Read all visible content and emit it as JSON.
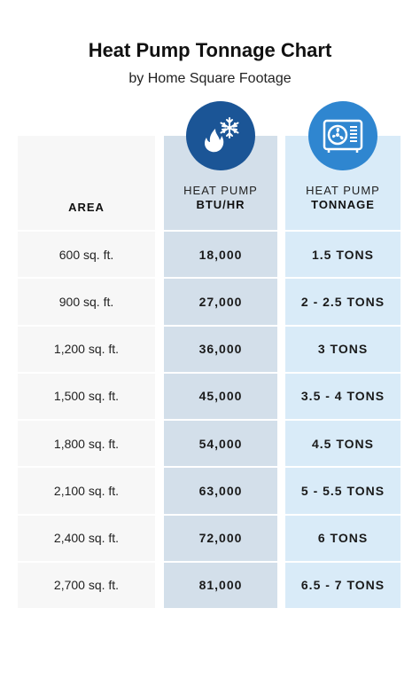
{
  "title": "Heat Pump Tonnage Chart",
  "subtitle": "by Home Square Footage",
  "colors": {
    "btu_column": "#d3dfea",
    "tonnage_column": "#d9ebf8",
    "btu_icon": "#1b5596",
    "tonnage_icon": "#2f86d0"
  },
  "icons": {
    "btu": "flame-snowflake-icon",
    "tonnage": "heat-pump-unit-icon"
  },
  "chart_data": {
    "type": "table",
    "columns": [
      {
        "line1": "",
        "line2": "AREA"
      },
      {
        "line1": "HEAT PUMP",
        "line2": "BTU/HR"
      },
      {
        "line1": "HEAT PUMP",
        "line2": "TONNAGE"
      }
    ],
    "rows": [
      [
        "600 sq. ft.",
        "18,000",
        "1.5 TONS"
      ],
      [
        "900 sq. ft.",
        "27,000",
        "2 - 2.5 TONS"
      ],
      [
        "1,200 sq. ft.",
        "36,000",
        "3 TONS"
      ],
      [
        "1,500 sq. ft.",
        "45,000",
        "3.5 - 4 TONS"
      ],
      [
        "1,800 sq. ft.",
        "54,000",
        "4.5 TONS"
      ],
      [
        "2,100 sq. ft.",
        "63,000",
        "5 - 5.5 TONS"
      ],
      [
        "2,400 sq. ft.",
        "72,000",
        "6 TONS"
      ],
      [
        "2,700 sq. ft.",
        "81,000",
        "6.5 - 7 TONS"
      ]
    ]
  }
}
